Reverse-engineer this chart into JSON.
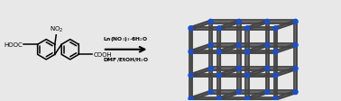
{
  "bg_color": "#e8e8e8",
  "node_color": "#1a4fcc",
  "linker_color": "#444444",
  "linker_color2": "#888888",
  "arrow_color": "#000000",
  "text_color": "#000000",
  "grid_nx": 3,
  "grid_ny": 3,
  "grid_nz": 2,
  "ox": 6.3,
  "oy": 0.15,
  "sx": 1.05,
  "sy": 0.82,
  "pz": 0.55,
  "qz": 0.18,
  "node_r": 0.065,
  "lw_link": 1.4,
  "n_parallel": 5
}
